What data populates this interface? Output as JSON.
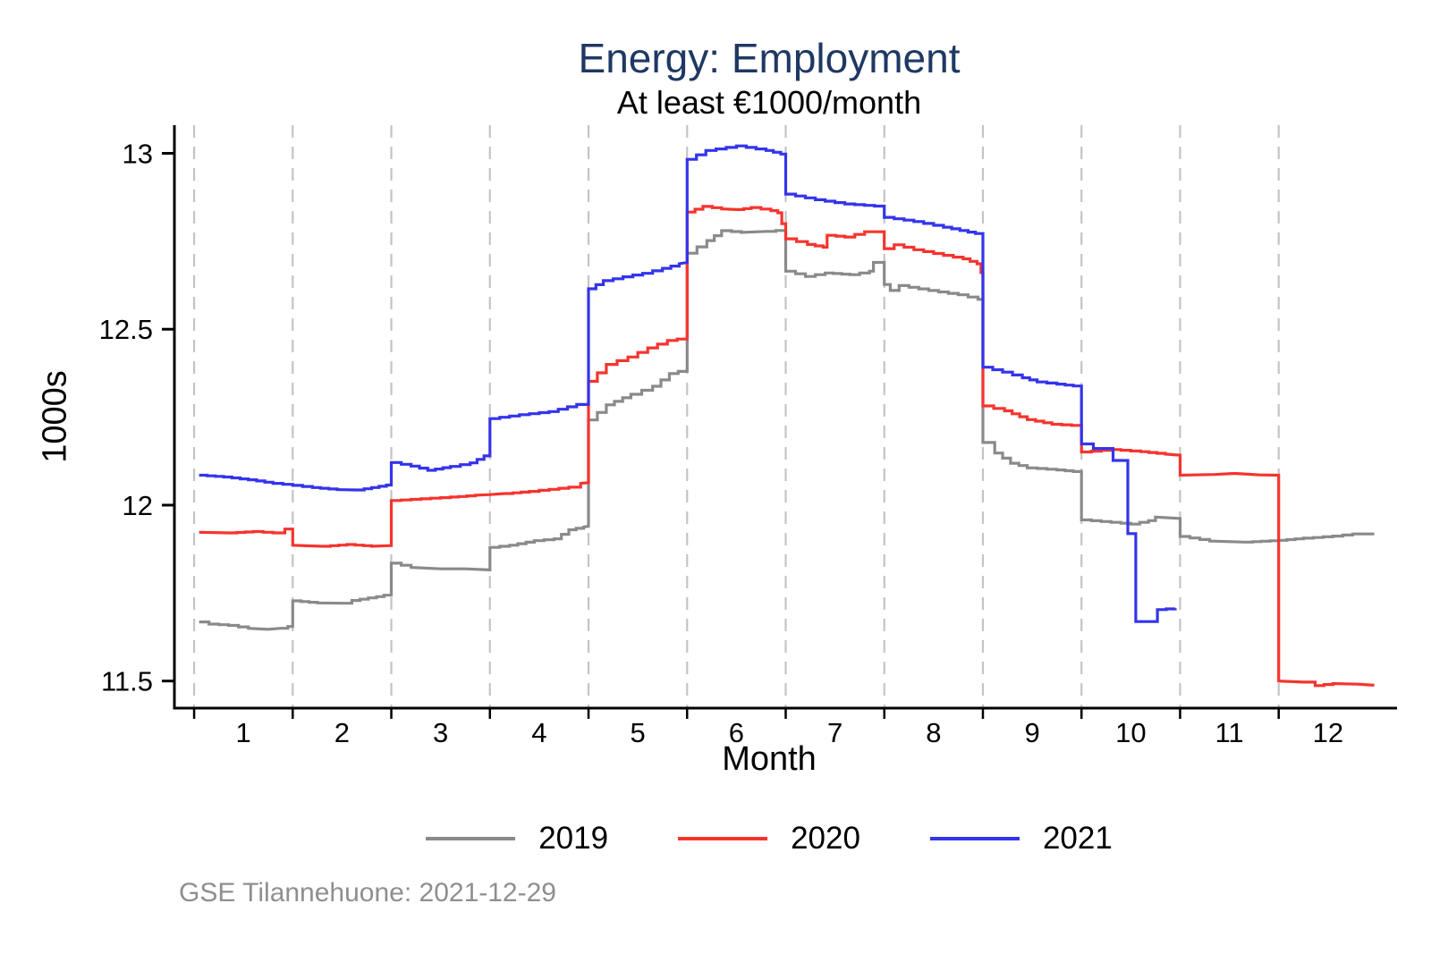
{
  "page": {
    "footer": "GSE Tilannehuone: 2021-12-29"
  },
  "chart_data": {
    "type": "line",
    "title": "Energy: Employment",
    "subtitle": "At least €1000/month",
    "xlabel": "Month",
    "ylabel": "1000s",
    "x_ticks": [
      1,
      2,
      3,
      4,
      5,
      6,
      7,
      8,
      9,
      10,
      11,
      12
    ],
    "x_gridlines": [
      0.5,
      1.5,
      2.5,
      3.5,
      4.5,
      5.5,
      6.5,
      7.5,
      8.5,
      9.5,
      10.5,
      11.5
    ],
    "y_ticks": [
      11.5,
      12,
      12.5,
      13
    ],
    "xlim": [
      0.3,
      12.7
    ],
    "ylim": [
      11.423,
      13.08
    ],
    "grid": "vertical-dashed",
    "legend_position": "bottom",
    "line_style": "step",
    "colors": {
      "title": "#1f3864",
      "gridline": "#c4c4c4",
      "axis": "#000000",
      "footer": "#8f8f8f"
    },
    "series": [
      {
        "name": "2019",
        "color": "#8a8a8a",
        "points": [
          [
            0.55,
            11.668
          ],
          [
            0.65,
            11.662
          ],
          [
            0.85,
            11.658
          ],
          [
            1.05,
            11.65
          ],
          [
            1.25,
            11.647
          ],
          [
            1.38,
            11.65
          ],
          [
            1.45,
            11.655
          ],
          [
            1.5,
            11.655
          ],
          [
            1.5,
            11.728
          ],
          [
            1.75,
            11.722
          ],
          [
            2.0,
            11.721
          ],
          [
            2.1,
            11.729
          ],
          [
            2.35,
            11.74
          ],
          [
            2.5,
            11.748
          ],
          [
            2.5,
            11.835
          ],
          [
            2.7,
            11.823
          ],
          [
            3.0,
            11.819
          ],
          [
            3.25,
            11.819
          ],
          [
            3.5,
            11.816
          ],
          [
            3.5,
            11.88
          ],
          [
            3.7,
            11.886
          ],
          [
            3.95,
            11.899
          ],
          [
            4.15,
            11.904
          ],
          [
            4.3,
            11.93
          ],
          [
            4.45,
            11.938
          ],
          [
            4.5,
            11.94
          ],
          [
            4.5,
            12.242
          ],
          [
            4.68,
            12.285
          ],
          [
            4.93,
            12.315
          ],
          [
            5.15,
            12.338
          ],
          [
            5.32,
            12.374
          ],
          [
            5.5,
            12.386
          ],
          [
            5.5,
            12.716
          ],
          [
            5.7,
            12.752
          ],
          [
            5.85,
            12.78
          ],
          [
            6.05,
            12.775
          ],
          [
            6.3,
            12.778
          ],
          [
            6.5,
            12.783
          ],
          [
            6.5,
            12.665
          ],
          [
            6.7,
            12.65
          ],
          [
            6.9,
            12.66
          ],
          [
            7.15,
            12.655
          ],
          [
            7.35,
            12.665
          ],
          [
            7.39,
            12.69
          ],
          [
            7.5,
            12.69
          ],
          [
            7.5,
            12.627
          ],
          [
            7.56,
            12.61
          ],
          [
            7.65,
            12.624
          ],
          [
            7.95,
            12.61
          ],
          [
            8.25,
            12.598
          ],
          [
            8.45,
            12.585
          ],
          [
            8.5,
            12.578
          ],
          [
            8.5,
            12.178
          ],
          [
            8.62,
            12.148
          ],
          [
            8.78,
            12.119
          ],
          [
            8.95,
            12.106
          ],
          [
            9.25,
            12.1
          ],
          [
            9.5,
            12.093
          ],
          [
            9.5,
            11.958
          ],
          [
            9.8,
            11.951
          ],
          [
            10.0,
            11.946
          ],
          [
            10.18,
            11.956
          ],
          [
            10.25,
            11.966
          ],
          [
            10.5,
            11.962
          ],
          [
            10.5,
            11.911
          ],
          [
            10.8,
            11.898
          ],
          [
            11.15,
            11.895
          ],
          [
            11.5,
            11.9
          ],
          [
            11.75,
            11.906
          ],
          [
            12.05,
            11.912
          ],
          [
            12.25,
            11.918
          ],
          [
            12.47,
            11.918
          ]
        ]
      },
      {
        "name": "2020",
        "color": "#f5342e",
        "points": [
          [
            0.55,
            11.923
          ],
          [
            0.85,
            11.921
          ],
          [
            1.1,
            11.925
          ],
          [
            1.3,
            11.921
          ],
          [
            1.42,
            11.932
          ],
          [
            1.5,
            11.932
          ],
          [
            1.5,
            11.886
          ],
          [
            1.8,
            11.883
          ],
          [
            2.05,
            11.888
          ],
          [
            2.3,
            11.883
          ],
          [
            2.5,
            11.885
          ],
          [
            2.5,
            12.013
          ],
          [
            2.8,
            12.018
          ],
          [
            3.1,
            12.023
          ],
          [
            3.35,
            12.028
          ],
          [
            3.5,
            12.03
          ],
          [
            3.65,
            12.033
          ],
          [
            3.9,
            12.039
          ],
          [
            4.1,
            12.045
          ],
          [
            4.3,
            12.051
          ],
          [
            4.42,
            12.062
          ],
          [
            4.5,
            12.064
          ],
          [
            4.5,
            12.352
          ],
          [
            4.68,
            12.4
          ],
          [
            4.9,
            12.421
          ],
          [
            5.1,
            12.447
          ],
          [
            5.3,
            12.468
          ],
          [
            5.5,
            12.476
          ],
          [
            5.5,
            12.833
          ],
          [
            5.66,
            12.849
          ],
          [
            5.85,
            12.842
          ],
          [
            6.0,
            12.84
          ],
          [
            6.15,
            12.846
          ],
          [
            6.35,
            12.837
          ],
          [
            6.42,
            12.831
          ],
          [
            6.46,
            12.8
          ],
          [
            6.5,
            12.792
          ],
          [
            6.5,
            12.757
          ],
          [
            6.72,
            12.741
          ],
          [
            6.88,
            12.733
          ],
          [
            6.92,
            12.767
          ],
          [
            7.1,
            12.762
          ],
          [
            7.3,
            12.777
          ],
          [
            7.5,
            12.777
          ],
          [
            7.5,
            12.729
          ],
          [
            7.6,
            12.74
          ],
          [
            7.8,
            12.726
          ],
          [
            8.1,
            12.71
          ],
          [
            8.3,
            12.7
          ],
          [
            8.44,
            12.686
          ],
          [
            8.48,
            12.661
          ],
          [
            8.5,
            12.66
          ],
          [
            8.5,
            12.282
          ],
          [
            8.72,
            12.268
          ],
          [
            8.95,
            12.243
          ],
          [
            9.2,
            12.23
          ],
          [
            9.5,
            12.225
          ],
          [
            9.5,
            12.151
          ],
          [
            9.8,
            12.158
          ],
          [
            10.1,
            12.152
          ],
          [
            10.35,
            12.145
          ],
          [
            10.5,
            12.142
          ],
          [
            10.5,
            12.085
          ],
          [
            10.85,
            12.087
          ],
          [
            11.05,
            12.09
          ],
          [
            11.3,
            12.086
          ],
          [
            11.5,
            12.085
          ],
          [
            11.5,
            11.5
          ],
          [
            11.75,
            11.497
          ],
          [
            11.87,
            11.487
          ],
          [
            12.05,
            11.493
          ],
          [
            12.3,
            11.491
          ],
          [
            12.47,
            11.488
          ]
        ]
      },
      {
        "name": "2021",
        "color": "#3434eb",
        "points": [
          [
            0.55,
            12.085
          ],
          [
            0.8,
            12.08
          ],
          [
            1.05,
            12.072
          ],
          [
            1.3,
            12.062
          ],
          [
            1.5,
            12.056
          ],
          [
            1.7,
            12.05
          ],
          [
            1.95,
            12.044
          ],
          [
            2.15,
            12.043
          ],
          [
            2.3,
            12.05
          ],
          [
            2.45,
            12.057
          ],
          [
            2.5,
            12.063
          ],
          [
            2.5,
            12.121
          ],
          [
            2.7,
            12.111
          ],
          [
            2.87,
            12.099
          ],
          [
            3.1,
            12.11
          ],
          [
            3.3,
            12.12
          ],
          [
            3.44,
            12.14
          ],
          [
            3.5,
            12.14
          ],
          [
            3.5,
            12.246
          ],
          [
            3.8,
            12.257
          ],
          [
            4.1,
            12.266
          ],
          [
            4.38,
            12.286
          ],
          [
            4.5,
            12.291
          ],
          [
            4.5,
            12.615
          ],
          [
            4.65,
            12.638
          ],
          [
            4.85,
            12.649
          ],
          [
            5.05,
            12.659
          ],
          [
            5.25,
            12.673
          ],
          [
            5.42,
            12.686
          ],
          [
            5.5,
            12.69
          ],
          [
            5.5,
            12.983
          ],
          [
            5.69,
            13.008
          ],
          [
            6.0,
            13.021
          ],
          [
            6.3,
            13.008
          ],
          [
            6.45,
            12.998
          ],
          [
            6.5,
            12.99
          ],
          [
            6.5,
            12.884
          ],
          [
            6.8,
            12.868
          ],
          [
            7.1,
            12.856
          ],
          [
            7.4,
            12.85
          ],
          [
            7.5,
            12.85
          ],
          [
            7.5,
            12.818
          ],
          [
            7.8,
            12.806
          ],
          [
            8.1,
            12.79
          ],
          [
            8.35,
            12.776
          ],
          [
            8.5,
            12.768
          ],
          [
            8.5,
            12.392
          ],
          [
            8.7,
            12.378
          ],
          [
            8.9,
            12.362
          ],
          [
            9.05,
            12.35
          ],
          [
            9.25,
            12.344
          ],
          [
            9.5,
            12.336
          ],
          [
            9.5,
            12.174
          ],
          [
            9.62,
            12.174
          ],
          [
            9.62,
            12.161
          ],
          [
            9.82,
            12.161
          ],
          [
            9.82,
            12.127
          ],
          [
            9.97,
            12.127
          ],
          [
            9.97,
            11.919
          ],
          [
            10.05,
            11.919
          ],
          [
            10.05,
            11.669
          ],
          [
            10.27,
            11.669
          ],
          [
            10.27,
            11.703
          ],
          [
            10.45,
            11.707
          ]
        ]
      }
    ]
  }
}
